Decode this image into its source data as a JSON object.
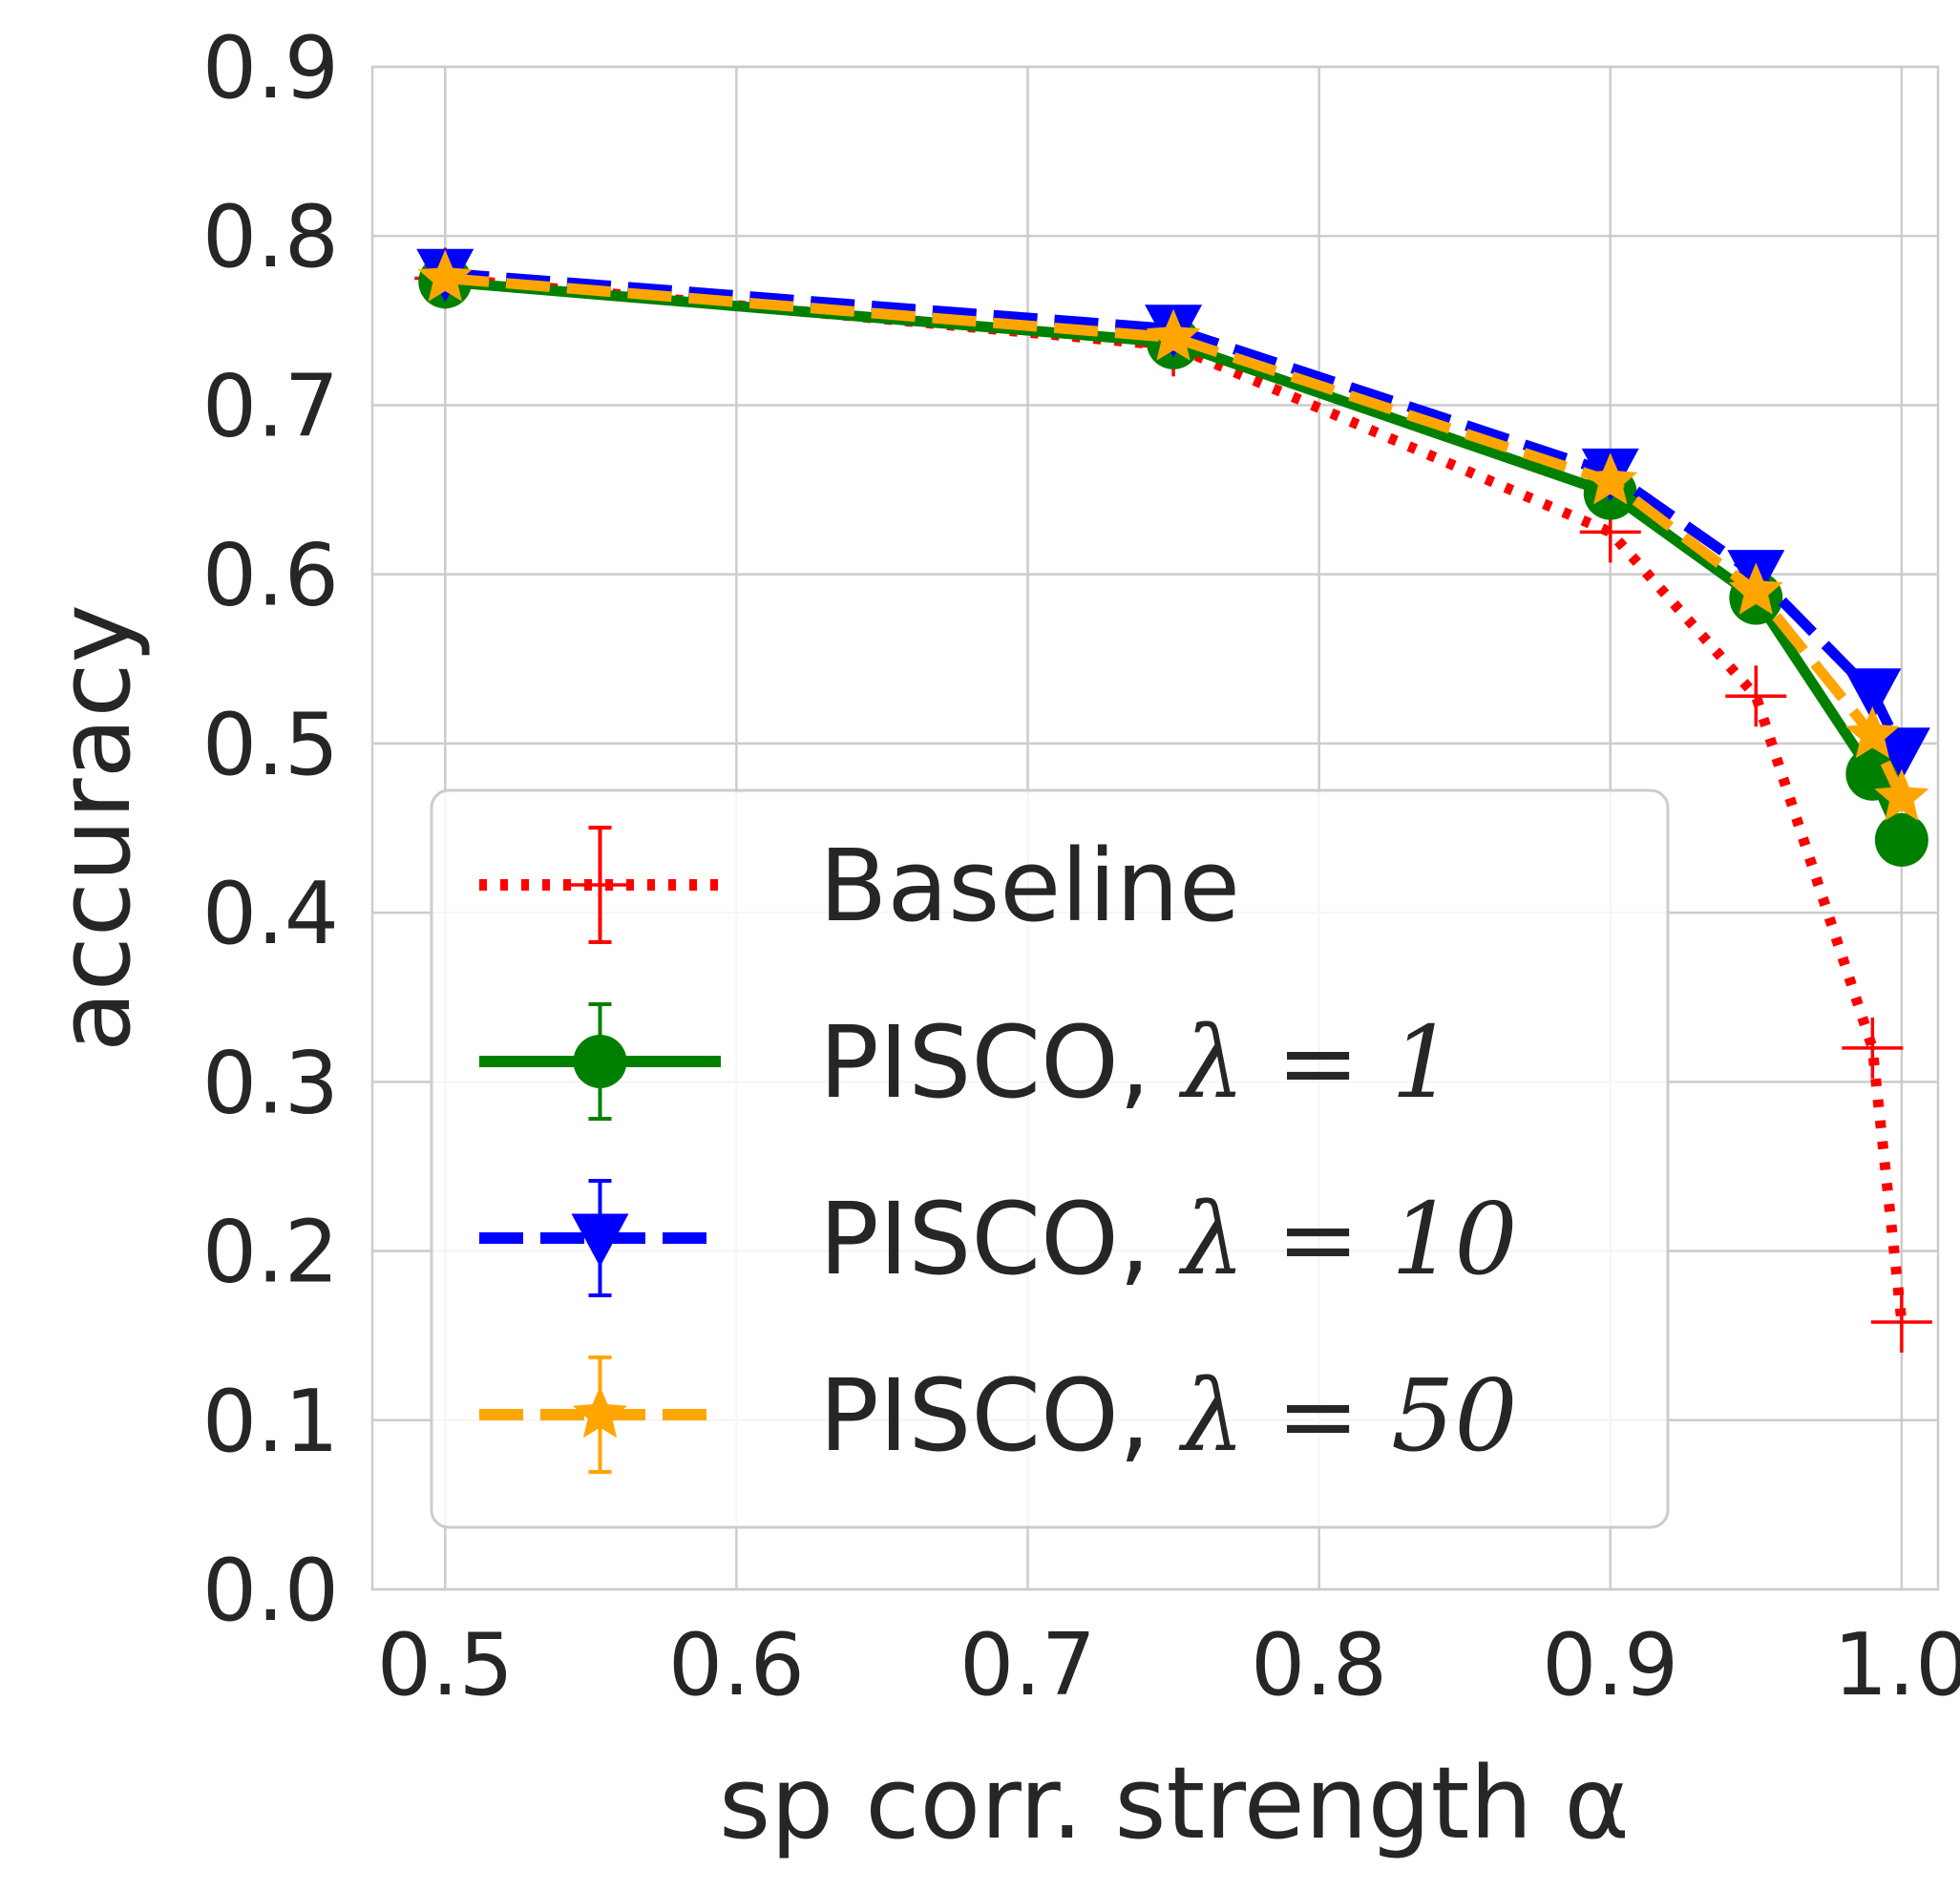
{
  "chart_data": {
    "type": "line",
    "title": "",
    "xlabel": "sp corr. strength α",
    "ylabel": "accuracy",
    "xlim": [
      0.475,
      1.0125
    ],
    "ylim": [
      0.0,
      0.9
    ],
    "xticks": [
      0.5,
      0.6,
      0.7,
      0.8,
      0.9,
      1.0
    ],
    "xtick_labels": [
      "0.5",
      "0.6",
      "0.7",
      "0.8",
      "0.9",
      "1.0"
    ],
    "yticks": [
      0.0,
      0.1,
      0.2,
      0.3,
      0.4,
      0.5,
      0.6,
      0.7,
      0.8,
      0.9
    ],
    "ytick_labels": [
      "0.0",
      "0.1",
      "0.2",
      "0.3",
      "0.4",
      "0.5",
      "0.6",
      "0.7",
      "0.8",
      "0.9"
    ],
    "grid": true,
    "legend_position": "lower-left",
    "x": [
      0.5,
      0.75,
      0.9,
      0.95,
      0.99,
      1.0
    ],
    "series": [
      {
        "name": "Baseline",
        "legend_prefix": "Baseline",
        "legend_math": "",
        "color": "#ff0000",
        "linestyle": "dotted",
        "marker": "plus",
        "values": [
          0.775,
          0.735,
          0.625,
          0.528,
          0.32,
          0.158
        ]
      },
      {
        "name": "PISCO, λ = 1",
        "legend_prefix": "PISCO, ",
        "legend_math": "λ = 1",
        "color": "#008000",
        "linestyle": "solid",
        "marker": "circle",
        "values": [
          0.773,
          0.737,
          0.648,
          0.586,
          0.482,
          0.443
        ]
      },
      {
        "name": "PISCO, λ = 10",
        "legend_prefix": "PISCO, ",
        "legend_math": "λ = 10",
        "color": "#0000ff",
        "linestyle": "dashed",
        "marker": "triangle-down",
        "values": [
          0.778,
          0.745,
          0.66,
          0.6,
          0.53,
          0.495
        ]
      },
      {
        "name": "PISCO, λ = 50",
        "legend_prefix": "PISCO, ",
        "legend_math": "λ = 50",
        "color": "#ffa500",
        "linestyle": "dashed",
        "marker": "star",
        "values": [
          0.775,
          0.74,
          0.655,
          0.59,
          0.505,
          0.468
        ]
      }
    ]
  }
}
